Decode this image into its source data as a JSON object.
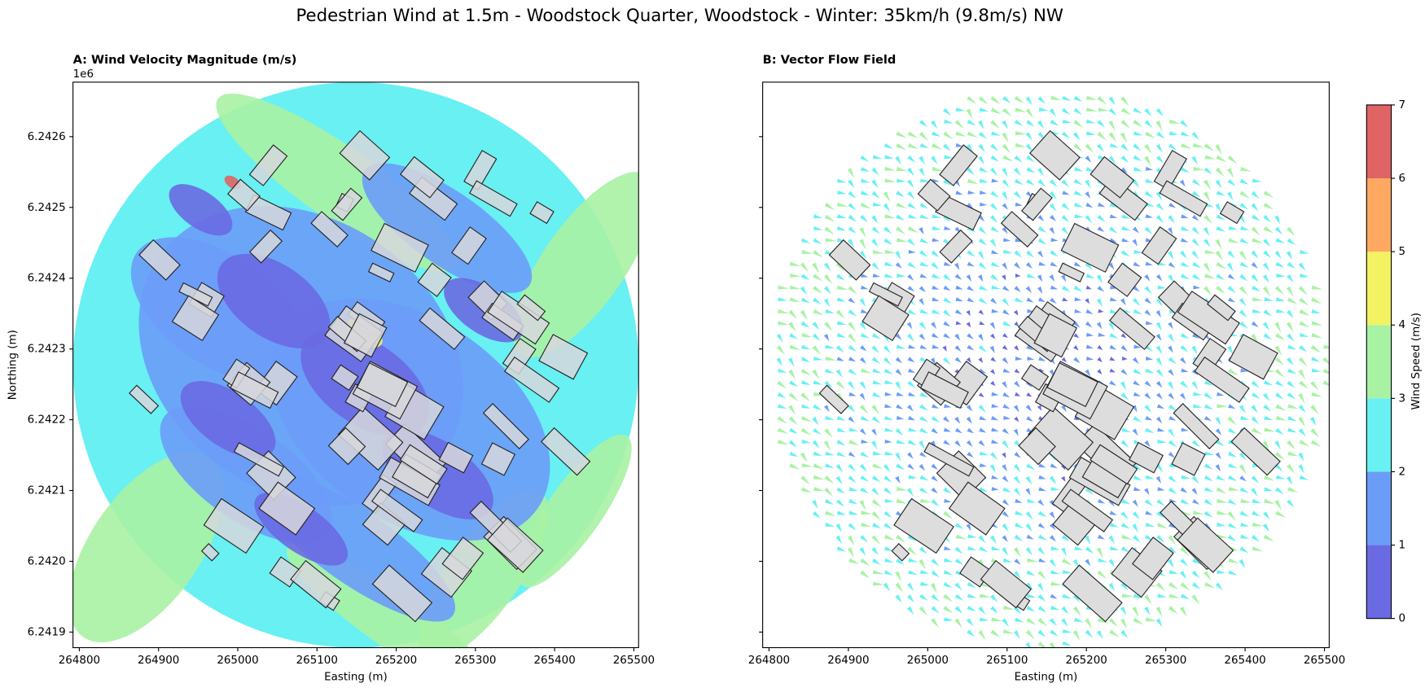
{
  "title": "Pedestrian Wind at 1.5m - Woodstock Quarter, Woodstock - Winter: 35km/h (9.8m/s) NW",
  "chart_data": [
    {
      "type": "contour",
      "title": "A: Wind Velocity Magnitude (m/s)",
      "xlabel": "Easting (m)",
      "ylabel": "Northing (m)",
      "xlim": [
        264792,
        265506
      ],
      "ylim": [
        6241878,
        6242677
      ],
      "xticks": [
        264800,
        264900,
        265000,
        265100,
        265200,
        265300,
        265400,
        265500
      ],
      "yticks": [
        {
          "value": 6241900,
          "label": "6.2419"
        },
        {
          "value": 6242000,
          "label": "6.2420"
        },
        {
          "value": 6242100,
          "label": "6.2421"
        },
        {
          "value": 6242200,
          "label": "6.2422"
        },
        {
          "value": 6242300,
          "label": "6.2423"
        },
        {
          "value": 6242400,
          "label": "6.2424"
        },
        {
          "value": 6242500,
          "label": "6.2425"
        },
        {
          "value": 6242600,
          "label": "6.2426"
        }
      ],
      "y_offset_label": "1e6"
    },
    {
      "type": "quiver",
      "title": "B: Vector Flow Field",
      "xlabel": "Easting (m)",
      "xlim": [
        264792,
        265506
      ],
      "ylim": [
        6241878,
        6242677
      ],
      "xticks": [
        264800,
        264900,
        265000,
        265100,
        265200,
        265300,
        265400,
        265500
      ],
      "yticks": [
        6241900,
        6242000,
        6242100,
        6242200,
        6242300,
        6242400,
        6242500,
        6242600
      ]
    },
    {
      "type": "colorbar",
      "label": "Wind Speed (m/s)",
      "ylim": [
        0,
        7
      ],
      "yticks": [
        0,
        1,
        2,
        3,
        4,
        5,
        6,
        7
      ],
      "colors": [
        "#6a6ae2",
        "#6b9cf8",
        "#68f0f2",
        "#a8f2a4",
        "#f2f262",
        "#ffa862",
        "#e06464"
      ]
    }
  ]
}
